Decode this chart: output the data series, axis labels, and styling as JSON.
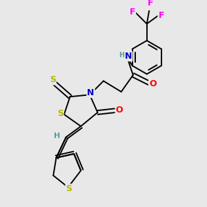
{
  "background_color": "#e8e8e8",
  "fig_size": [
    3.0,
    3.0
  ],
  "dpi": 100,
  "atom_colors": {
    "C": "#000000",
    "N": "#0000cd",
    "O": "#ff0000",
    "S": "#b8b800",
    "F": "#ff00ff",
    "H": "#5a9a9a"
  },
  "bond_color": "#000000",
  "bond_width": 1.4
}
